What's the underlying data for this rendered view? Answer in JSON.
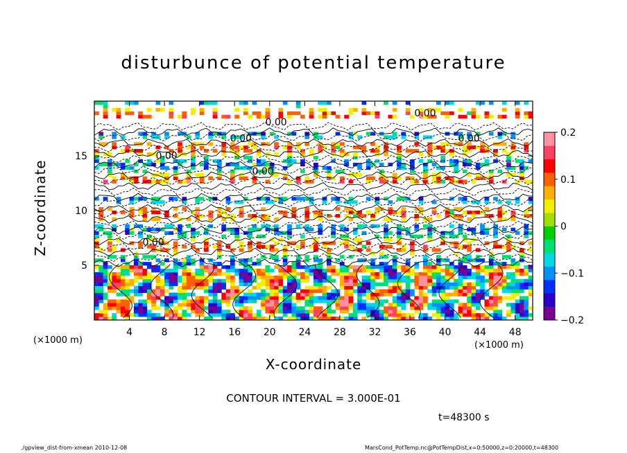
{
  "chart_data": {
    "type": "heatmap",
    "title": "disturbunce of potential temperature",
    "xlabel": "X-coordinate",
    "ylabel": "Z-coordinate",
    "x_unit_left": "(×1000 m)",
    "x_unit_right": "(×1000 m)",
    "xlim": [
      0,
      50
    ],
    "ylim": [
      0,
      20
    ],
    "x_ticks": [
      4,
      8,
      12,
      16,
      20,
      24,
      28,
      32,
      36,
      40,
      44,
      48
    ],
    "x_tick_labels": [
      "4",
      "8",
      "12",
      "16",
      "20",
      "24",
      "28",
      "32",
      "36",
      "40",
      "44",
      "48"
    ],
    "y_ticks": [
      5,
      10,
      15
    ],
    "y_tick_labels": [
      "5",
      "10",
      "15"
    ],
    "colorbar": {
      "range": [
        -0.2,
        0.2
      ],
      "ticks": [
        0.2,
        0.1,
        0,
        -0.1,
        -0.2
      ],
      "tick_labels": [
        "0.2",
        "0.1",
        "0",
        "−0.1",
        "−0.2"
      ],
      "colors": [
        "#7b0090",
        "#2a00c8",
        "#0030ff",
        "#0090ff",
        "#00d8e8",
        "#00e070",
        "#00d000",
        "#a0e000",
        "#f0f000",
        "#ffb000",
        "#ff6000",
        "#ff0000",
        "#ff4060",
        "#ff90a0"
      ]
    },
    "contour_interval_text": "CONTOUR INTERVAL = 3.000E-01",
    "contour_labels": [
      "0.00",
      "0.00",
      "0.00",
      "0.00",
      "0.00",
      "0.00",
      "0.00"
    ],
    "time_label": "t=48300 s"
  },
  "footer": {
    "left": "./gpview_dist-from-xmean  2010-12-08",
    "right": "MarsCond_PotTemp.nc@PotTempDist,x=0:50000,z=0:20000,t=48300"
  },
  "colors": {
    "background": "#ffffff",
    "band_green": "#00d000",
    "band_red": "#ff2000",
    "band_yellow": "#f0f000",
    "band_blue": "#0030ff"
  }
}
